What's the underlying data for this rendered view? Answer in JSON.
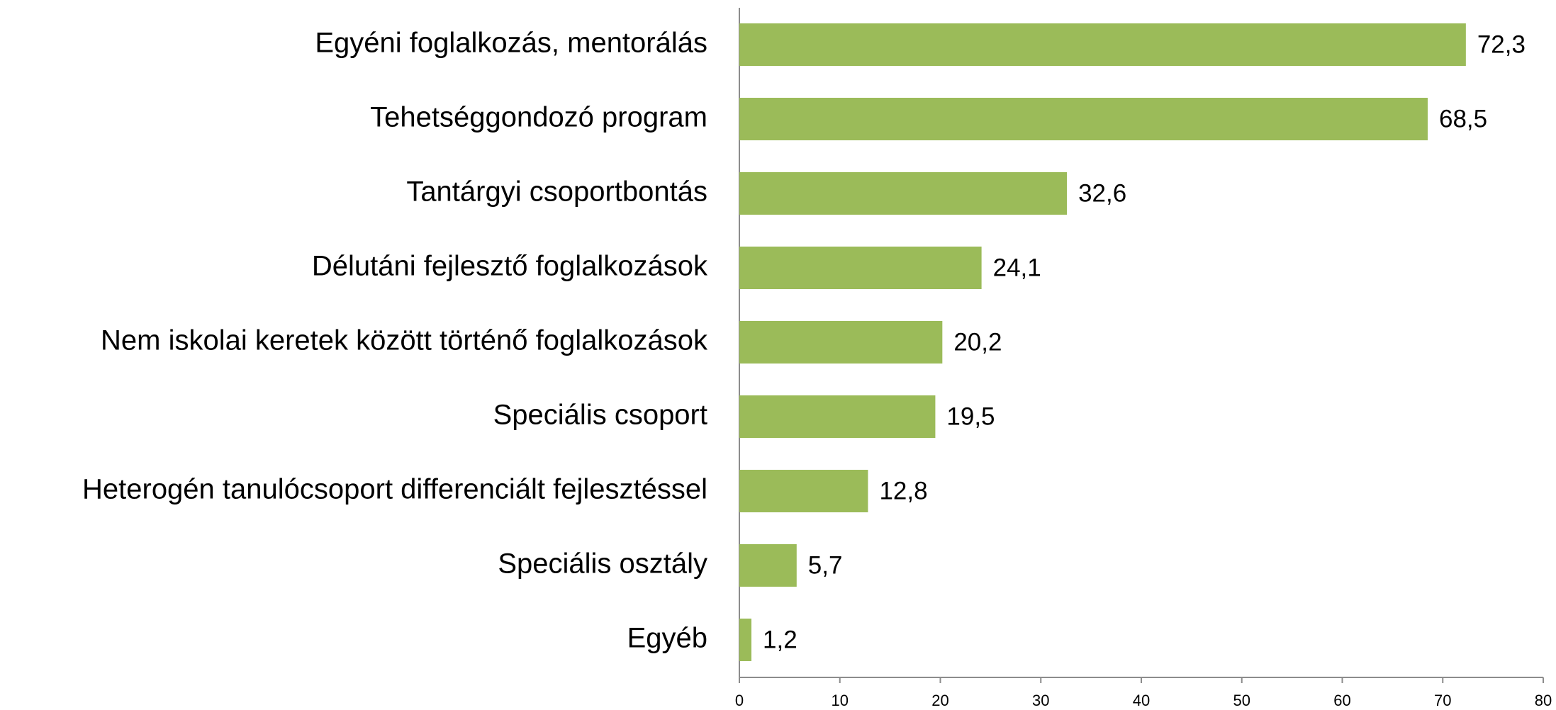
{
  "chart_data": {
    "type": "bar",
    "orientation": "horizontal",
    "categories": [
      "Egyéni foglalkozás, mentorálás",
      "Tehetséggondozó program",
      "Tantárgyi csoportbontás",
      "Délutáni fejlesztő foglalkozások",
      "Nem iskolai keretek között történő foglalkozások",
      "Speciális csoport",
      "Heterogén tanulócsoport differenciált fejlesztéssel",
      "Speciális osztály",
      "Egyéb"
    ],
    "values": [
      72.3,
      68.5,
      32.6,
      24.1,
      20.2,
      19.5,
      12.8,
      5.7,
      1.2
    ],
    "value_labels": [
      "72,3",
      "68,5",
      "32,6",
      "24,1",
      "20,2",
      "19,5",
      "12,8",
      "5,7",
      "1,2"
    ],
    "color": "#9bbb59",
    "xlim": [
      0,
      80
    ],
    "xticks": [
      0,
      10,
      20,
      30,
      40,
      50,
      60,
      70,
      80
    ],
    "grid": false
  }
}
